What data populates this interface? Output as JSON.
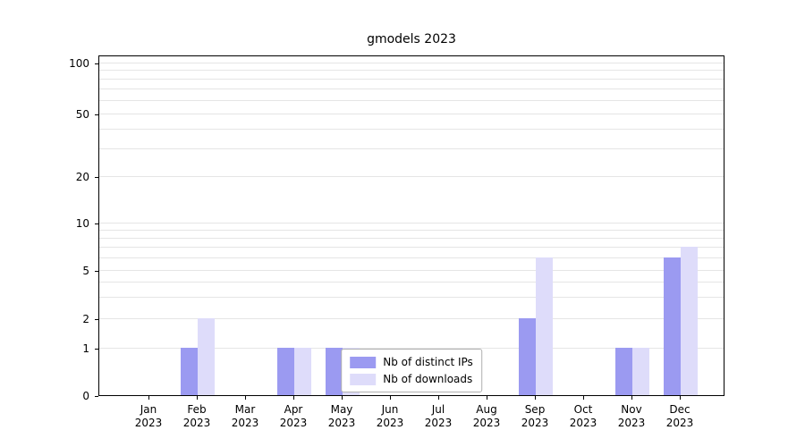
{
  "figure": {
    "background": "#ffffff"
  },
  "chart_data": {
    "type": "bar",
    "title": "gmodels 2023",
    "categories": [
      {
        "month": "Jan",
        "year": "2023"
      },
      {
        "month": "Feb",
        "year": "2023"
      },
      {
        "month": "Mar",
        "year": "2023"
      },
      {
        "month": "Apr",
        "year": "2023"
      },
      {
        "month": "May",
        "year": "2023"
      },
      {
        "month": "Jun",
        "year": "2023"
      },
      {
        "month": "Jul",
        "year": "2023"
      },
      {
        "month": "Aug",
        "year": "2023"
      },
      {
        "month": "Sep",
        "year": "2023"
      },
      {
        "month": "Oct",
        "year": "2023"
      },
      {
        "month": "Nov",
        "year": "2023"
      },
      {
        "month": "Dec",
        "year": "2023"
      }
    ],
    "series": [
      {
        "name": "Nb of distinct IPs",
        "key": "distinct-ips",
        "color": "#9b9af1",
        "values": [
          0,
          1,
          0,
          1,
          1,
          0,
          0,
          0,
          2,
          0,
          1,
          6
        ]
      },
      {
        "name": "Nb of downloads",
        "key": "downloads",
        "color": "#dedcfa",
        "values": [
          0,
          2,
          0,
          1,
          1,
          0,
          0,
          0,
          6,
          0,
          1,
          7
        ]
      }
    ],
    "yticks": [
      0,
      1,
      2,
      5,
      10,
      20,
      50,
      100
    ],
    "yaxis_scale": "symlog",
    "ylim": [
      0,
      120
    ],
    "grid": "horizontal-major-and-minor",
    "legend_position": "lower center"
  }
}
